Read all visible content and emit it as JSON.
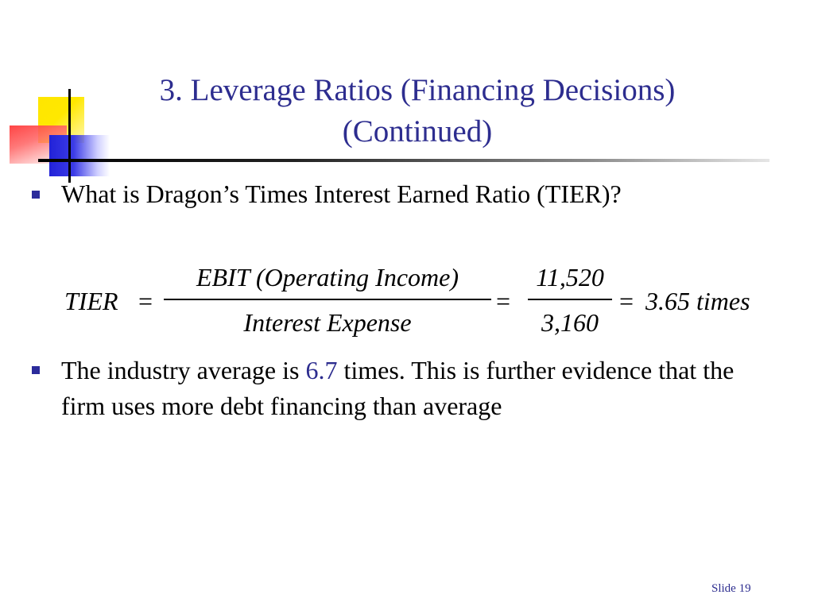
{
  "slide": {
    "title_line1": "3.  Leverage Ratios (Financing Decisions)",
    "title_line2": "(Continued)",
    "bullet1": "What is Dragon’s Times Interest Earned Ratio (TIER)?",
    "equation": {
      "lhs": "TIER",
      "equals": "=",
      "frac1_num": "EBIT (Operating Income)",
      "frac1_den": "Interest Expense",
      "frac2_num": "11,520",
      "frac2_den": "3,160",
      "result": "3.65 times"
    },
    "bullet2_pre": "The industry average is ",
    "bullet2_highlight": "6.7",
    "bullet2_post": " times.  This is further evidence that the firm uses more debt financing than average",
    "slide_number": "Slide 19"
  },
  "colors": {
    "title": "#2d2d8f",
    "bullet": "#2b2b9b",
    "highlight": "#2d2d8f"
  }
}
